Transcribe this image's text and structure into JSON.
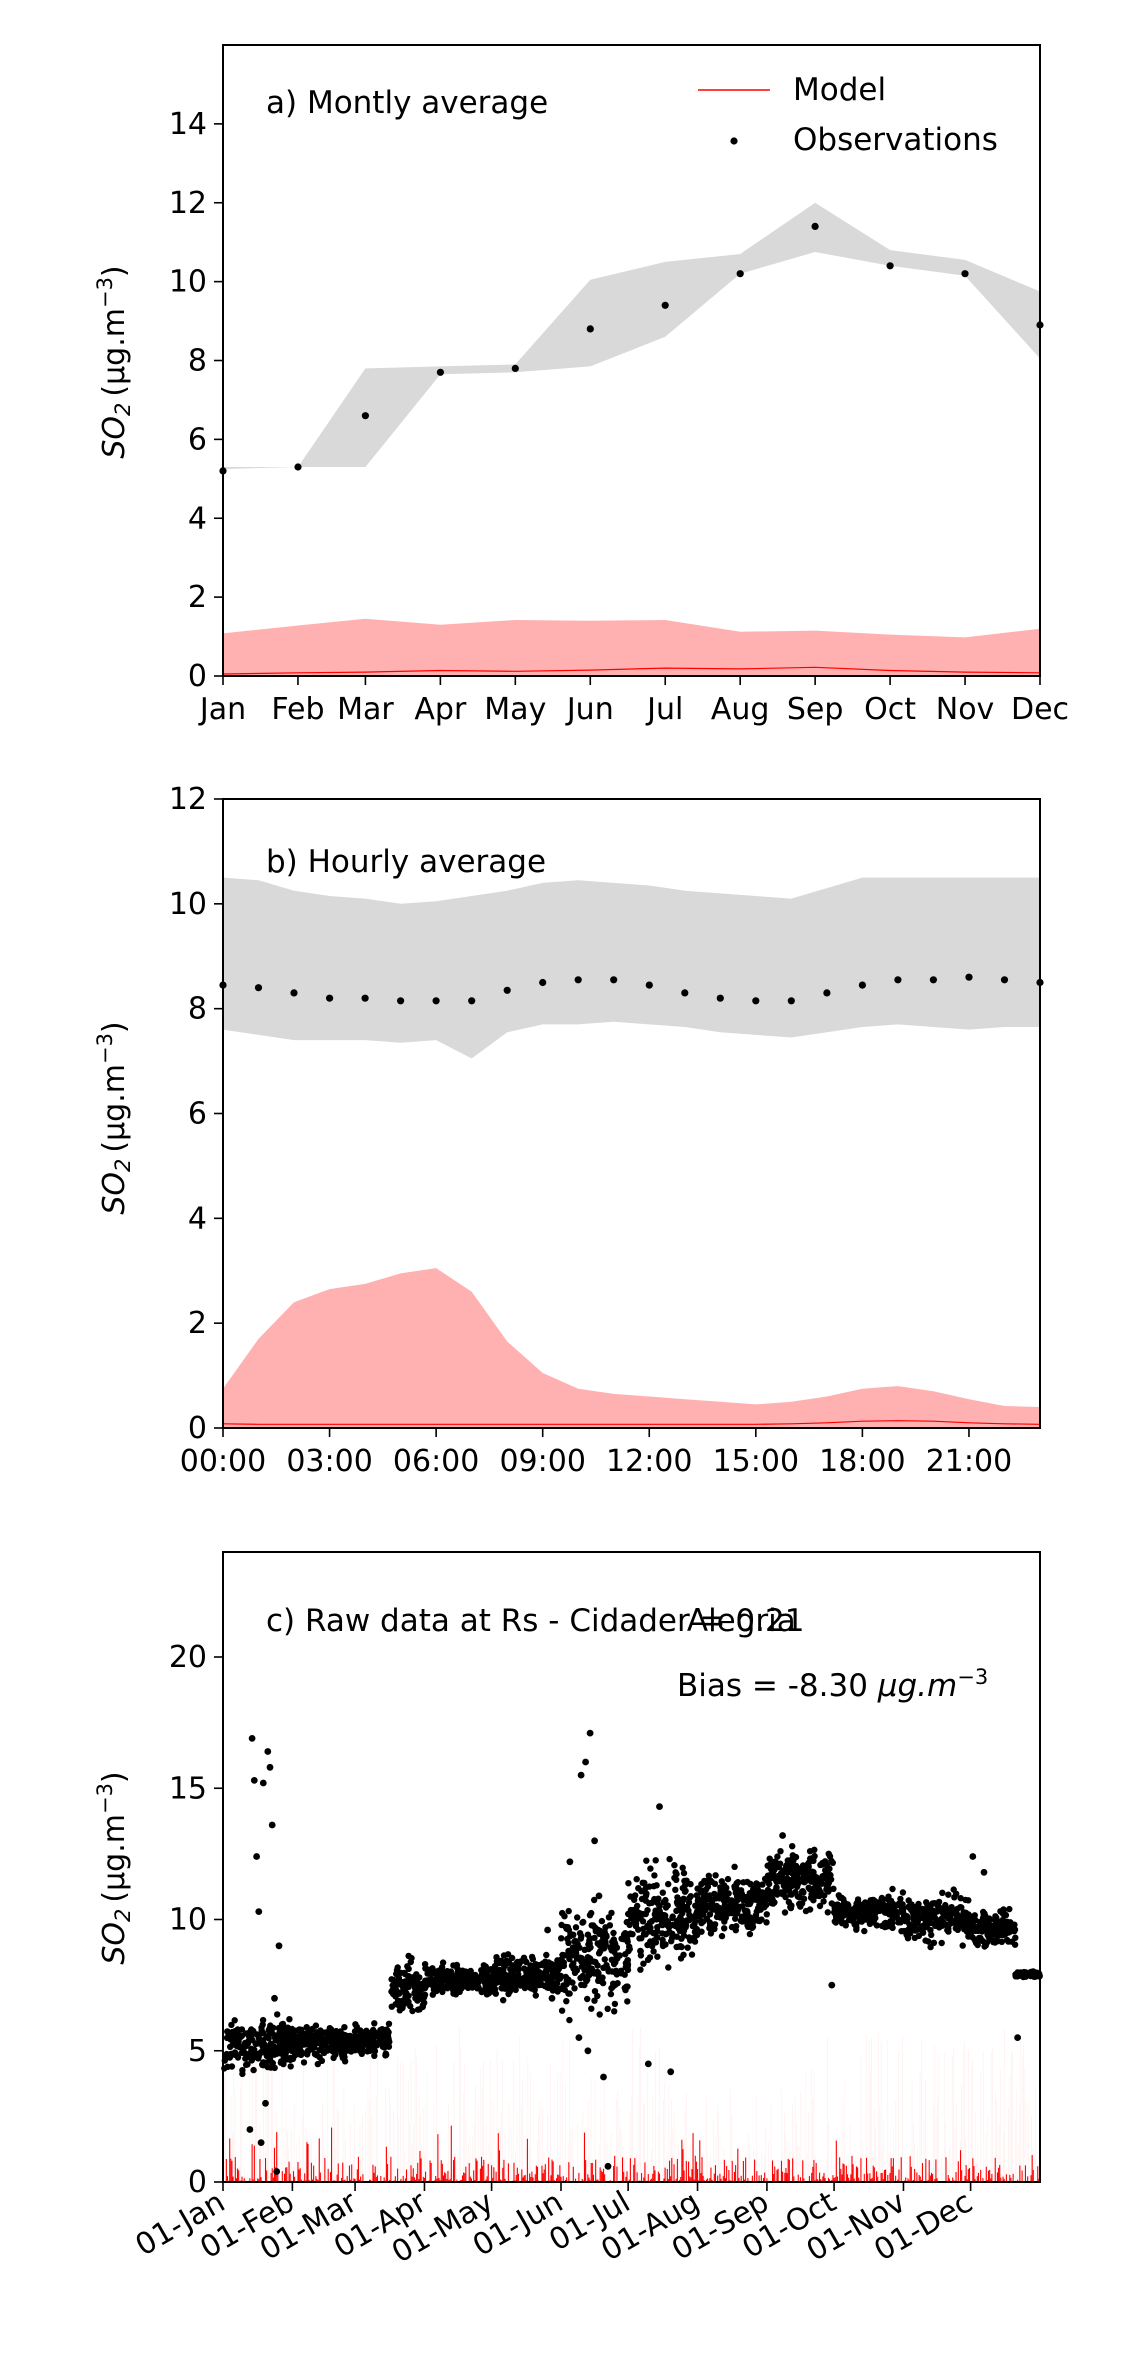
{
  "chart_data": [
    {
      "type": "area",
      "title": "a) Montly average",
      "ylabel": "SO2 (μg.m−3)",
      "ylabel_parts": {
        "base": "SO",
        "sub": "2",
        "unit": "(μg.m",
        "sup": "−3",
        "close": ")"
      },
      "ylim": [
        0,
        16
      ],
      "yticks": [
        0,
        2,
        4,
        6,
        8,
        10,
        12,
        14
      ],
      "grid": false,
      "legend_placement": "top-right",
      "legend": [
        {
          "label": "Model",
          "kind": "line",
          "color": "#ff0000"
        },
        {
          "label": "Observations",
          "kind": "point",
          "color": "#000000"
        }
      ],
      "categories": [
        "Jan",
        "Feb",
        "Mar",
        "Apr",
        "May",
        "Jun",
        "Jul",
        "Aug",
        "Sep",
        "Oct",
        "Nov",
        "Dec"
      ],
      "x": [
        0,
        1,
        1.9,
        2.9,
        3.9,
        4.9,
        5.9,
        6.9,
        7.9,
        8.9,
        9.9,
        10.9
      ],
      "xlim": [
        0,
        10.9
      ],
      "series": [
        {
          "name": "Observations",
          "kind": "points",
          "color": "#000000",
          "values": [
            5.2,
            5.3,
            6.6,
            7.7,
            7.8,
            8.8,
            9.4,
            10.2,
            11.4,
            10.4,
            10.2,
            8.9
          ]
        },
        {
          "name": "Model",
          "kind": "line",
          "color": "#ff0000",
          "values": [
            0.05,
            0.08,
            0.1,
            0.14,
            0.12,
            0.15,
            0.2,
            0.18,
            0.22,
            0.14,
            0.1,
            0.08
          ]
        }
      ],
      "bands": [
        {
          "of": "Observations",
          "color": "#d9d9d9",
          "low": [
            5.25,
            5.3,
            5.3,
            7.65,
            7.7,
            7.85,
            8.6,
            10.2,
            10.75,
            10.4,
            10.15,
            8.05
          ],
          "high": [
            5.3,
            5.3,
            7.8,
            7.85,
            7.9,
            10.05,
            10.5,
            10.7,
            12.0,
            10.8,
            10.55,
            9.75
          ]
        },
        {
          "of": "Model",
          "color": "#ffb0b0",
          "low": [
            0.02,
            0.02,
            0.02,
            0.02,
            0.02,
            0.02,
            0.02,
            0.02,
            0.02,
            0.02,
            0.02,
            0.02
          ],
          "high": [
            1.08,
            1.28,
            1.45,
            1.3,
            1.42,
            1.4,
            1.42,
            1.12,
            1.15,
            1.05,
            0.98,
            1.2
          ]
        }
      ]
    },
    {
      "type": "area",
      "title": "b) Hourly average",
      "ylabel": "SO2 (μg.m−3)",
      "ylabel_parts": {
        "base": "SO",
        "sub": "2",
        "unit": "(μg.m",
        "sup": "−3",
        "close": ")"
      },
      "ylim": [
        0,
        12
      ],
      "yticks": [
        0,
        2,
        4,
        6,
        8,
        10,
        12
      ],
      "grid": false,
      "xlim": [
        0,
        23
      ],
      "xticks": [
        {
          "x": 0,
          "label": "00:00"
        },
        {
          "x": 3,
          "label": "03:00"
        },
        {
          "x": 6,
          "label": "06:00"
        },
        {
          "x": 9,
          "label": "09:00"
        },
        {
          "x": 12,
          "label": "12:00"
        },
        {
          "x": 15,
          "label": "15:00"
        },
        {
          "x": 18,
          "label": "18:00"
        },
        {
          "x": 21,
          "label": "21:00"
        }
      ],
      "x": [
        0,
        1,
        2,
        3,
        4,
        5,
        6,
        7,
        8,
        9,
        10,
        11,
        12,
        13,
        14,
        15,
        16,
        17,
        18,
        19,
        20,
        21,
        22,
        23
      ],
      "series": [
        {
          "name": "Observations",
          "kind": "points",
          "color": "#000000",
          "values": [
            8.45,
            8.4,
            8.3,
            8.2,
            8.2,
            8.15,
            8.15,
            8.15,
            8.35,
            8.5,
            8.55,
            8.55,
            8.45,
            8.3,
            8.2,
            8.15,
            8.15,
            8.3,
            8.45,
            8.55,
            8.55,
            8.6,
            8.55,
            8.5
          ]
        },
        {
          "name": "Model",
          "kind": "line",
          "color": "#ff0000",
          "values": [
            0.08,
            0.07,
            0.07,
            0.07,
            0.07,
            0.07,
            0.07,
            0.07,
            0.07,
            0.07,
            0.07,
            0.07,
            0.07,
            0.07,
            0.07,
            0.07,
            0.08,
            0.1,
            0.13,
            0.14,
            0.13,
            0.1,
            0.08,
            0.07
          ]
        }
      ],
      "bands": [
        {
          "of": "Observations",
          "color": "#d9d9d9",
          "low": [
            7.6,
            7.5,
            7.4,
            7.4,
            7.4,
            7.35,
            7.4,
            7.05,
            7.55,
            7.7,
            7.7,
            7.75,
            7.7,
            7.65,
            7.55,
            7.5,
            7.45,
            7.55,
            7.65,
            7.7,
            7.65,
            7.6,
            7.65,
            7.65
          ],
          "high": [
            10.5,
            10.45,
            10.25,
            10.15,
            10.1,
            10.0,
            10.05,
            10.15,
            10.25,
            10.4,
            10.45,
            10.4,
            10.35,
            10.25,
            10.2,
            10.15,
            10.1,
            10.3,
            10.5,
            10.5,
            10.5,
            10.5,
            10.5,
            10.5
          ]
        },
        {
          "of": "Model",
          "color": "#ffb0b0",
          "low": [
            0.02,
            0.02,
            0.02,
            0.02,
            0.02,
            0.02,
            0.02,
            0.02,
            0.02,
            0.02,
            0.02,
            0.02,
            0.02,
            0.02,
            0.02,
            0.02,
            0.02,
            0.02,
            0.02,
            0.02,
            0.02,
            0.02,
            0.02,
            0.02
          ],
          "high": [
            0.75,
            1.7,
            2.4,
            2.65,
            2.75,
            2.95,
            3.05,
            2.6,
            1.65,
            1.05,
            0.75,
            0.65,
            0.6,
            0.55,
            0.5,
            0.45,
            0.5,
            0.6,
            0.75,
            0.8,
            0.7,
            0.55,
            0.42,
            0.4
          ]
        }
      ]
    },
    {
      "type": "scatter",
      "title": "c) Raw data at Rs - Cidade Alegria",
      "annotations": {
        "r": "r = 0.21",
        "bias_text": "Bias = -8.30 ",
        "bias_unit": "μg.m",
        "bias_sup": "−3"
      },
      "ylabel": "SO2 (μg.m−3)",
      "ylabel_parts": {
        "base": "SO",
        "sub": "2",
        "unit": "(μg.m",
        "sup": "−3",
        "close": ")"
      },
      "ylim": [
        0,
        24
      ],
      "yticks": [
        0,
        5,
        10,
        15,
        20
      ],
      "grid": false,
      "x_unit": "day of year",
      "xlim": [
        0,
        365
      ],
      "xticks": [
        {
          "x": 0,
          "label": "01-Jan"
        },
        {
          "x": 31,
          "label": "01-Feb"
        },
        {
          "x": 59,
          "label": "01-Mar"
        },
        {
          "x": 90,
          "label": "01-Apr"
        },
        {
          "x": 120,
          "label": "01-May"
        },
        {
          "x": 151,
          "label": "01-Jun"
        },
        {
          "x": 181,
          "label": "01-Jul"
        },
        {
          "x": 212,
          "label": "01-Aug"
        },
        {
          "x": 243,
          "label": "01-Sep"
        },
        {
          "x": 273,
          "label": "01-Oct"
        },
        {
          "x": 304,
          "label": "01-Nov"
        },
        {
          "x": 334,
          "label": "01-Dec"
        }
      ],
      "series": [
        {
          "name": "Observations",
          "kind": "points",
          "color": "#000000",
          "segments": [
            {
              "x0": 0,
              "x1": 31,
              "base": 5.2,
              "spread": 0.9
            },
            {
              "x0": 31,
              "x1": 59,
              "base": 5.3,
              "spread": 0.6
            },
            {
              "x0": 59,
              "x1": 75,
              "base": 5.4,
              "spread": 0.5
            },
            {
              "x0": 75,
              "x1": 90,
              "base": 7.4,
              "spread": 0.9
            },
            {
              "x0": 90,
              "x1": 120,
              "base": 7.7,
              "spread": 0.5
            },
            {
              "x0": 120,
              "x1": 151,
              "base": 7.9,
              "spread": 0.7
            },
            {
              "x0": 151,
              "x1": 181,
              "base": 8.5,
              "spread": 1.6
            },
            {
              "x0": 181,
              "x1": 212,
              "base": 10.0,
              "spread": 1.6
            },
            {
              "x0": 212,
              "x1": 243,
              "base": 10.6,
              "spread": 1.0
            },
            {
              "x0": 243,
              "x1": 273,
              "base": 11.5,
              "spread": 1.0
            },
            {
              "x0": 273,
              "x1": 304,
              "base": 10.3,
              "spread": 0.6
            },
            {
              "x0": 304,
              "x1": 334,
              "base": 10.1,
              "spread": 0.8
            },
            {
              "x0": 334,
              "x1": 354,
              "base": 9.6,
              "spread": 0.6
            },
            {
              "x0": 354,
              "x1": 365,
              "base": 7.9,
              "spread": 0.1
            }
          ],
          "outliers": [
            [
              13,
              16.9
            ],
            [
              14,
              15.3
            ],
            [
              15,
              12.4
            ],
            [
              16,
              10.3
            ],
            [
              18,
              15.2
            ],
            [
              19,
              3.0
            ],
            [
              20,
              16.4
            ],
            [
              21,
              15.8
            ],
            [
              22,
              13.6
            ],
            [
              23,
              7.0
            ],
            [
              24,
              0.4
            ],
            [
              25,
              9.0
            ],
            [
              12,
              2.0
            ],
            [
              17,
              1.5
            ],
            [
              145,
              9.6
            ],
            [
              147,
              7.0
            ],
            [
              160,
              15.5
            ],
            [
              162,
              16.0
            ],
            [
              164,
              17.1
            ],
            [
              166,
              13.0
            ],
            [
              168,
              10.9
            ],
            [
              159,
              5.5
            ],
            [
              163,
              5.0
            ],
            [
              170,
              4.0
            ],
            [
              172,
              0.6
            ],
            [
              155,
              12.2
            ],
            [
              195,
              14.3
            ],
            [
              200,
              4.2
            ],
            [
              190,
              4.5
            ],
            [
              250,
              13.2
            ],
            [
              272,
              7.5
            ],
            [
              335,
              12.4
            ],
            [
              340,
              11.8
            ],
            [
              355,
              5.5
            ]
          ]
        },
        {
          "name": "Model",
          "kind": "line",
          "color": "#ff0000",
          "typical_max": 1.0,
          "peak_max": 2.2
        }
      ]
    }
  ]
}
